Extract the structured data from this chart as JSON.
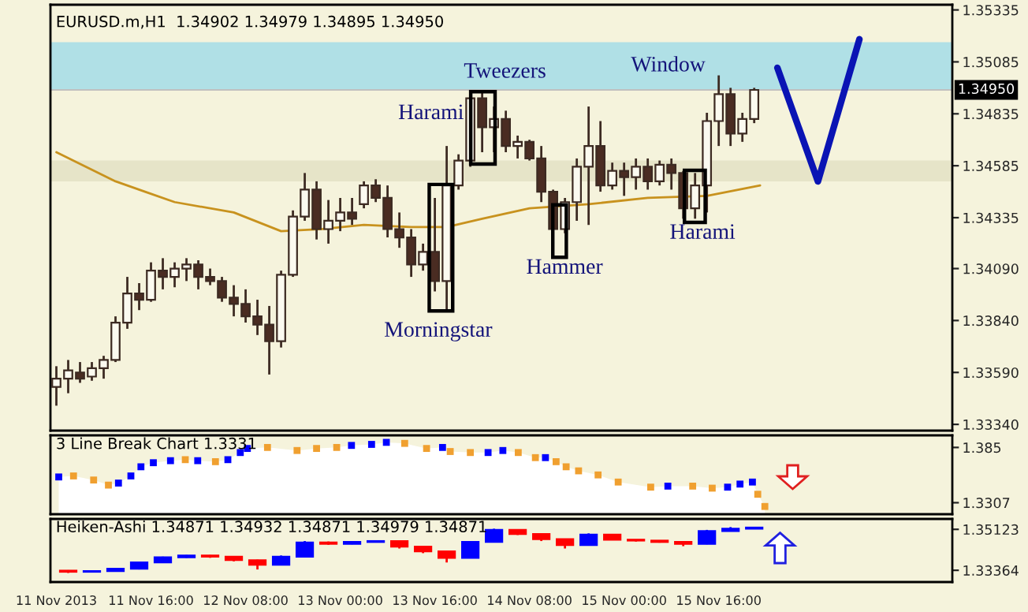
{
  "chart_data": [
    {
      "type": "candlestick",
      "title": "EURUSD.m,H1  1.34902 1.34979 1.34895 1.34950",
      "color": "#3c2a22",
      "x": [
        "2013-11-11T00:00",
        "2013-11-11T02:00",
        "2013-11-11T04:00",
        "2013-11-11T06:00",
        "2013-11-11T08:00",
        "2013-11-11T10:00",
        "2013-11-11T12:00",
        "2013-11-11T14:00",
        "2013-11-11T16:00",
        "2013-11-11T18:00",
        "2013-11-11T20:00",
        "2013-11-11T22:00",
        "2013-11-12T00:00",
        "2013-11-12T02:00",
        "2013-11-12T04:00",
        "2013-11-12T06:00",
        "2013-11-12T08:00",
        "2013-11-12T10:00",
        "2013-11-12T12:00",
        "2013-11-12T14:00",
        "2013-11-12T16:00",
        "2013-11-12T18:00",
        "2013-11-12T20:00",
        "2013-11-12T22:00",
        "2013-11-13T00:00",
        "2013-11-13T02:00",
        "2013-11-13T04:00",
        "2013-11-13T06:00",
        "2013-11-13T08:00",
        "2013-11-13T10:00",
        "2013-11-13T12:00",
        "2013-11-13T14:00",
        "2013-11-13T16:00",
        "2013-11-13T18:00",
        "2013-11-13T20:00",
        "2013-11-13T22:00",
        "2013-11-14T00:00",
        "2013-11-14T02:00",
        "2013-11-14T04:00",
        "2013-11-14T06:00",
        "2013-11-14T08:00",
        "2013-11-14T10:00",
        "2013-11-14T12:00",
        "2013-11-14T14:00",
        "2013-11-14T16:00",
        "2013-11-14T18:00",
        "2013-11-14T20:00",
        "2013-11-14T22:00",
        "2013-11-15T00:00",
        "2013-11-15T02:00",
        "2013-11-15T04:00",
        "2013-11-15T06:00",
        "2013-11-15T08:00",
        "2013-11-15T10:00",
        "2013-11-15T12:00",
        "2013-11-15T14:00",
        "2013-11-15T16:00",
        "2013-11-15T18:00",
        "2013-11-15T20:00",
        "2013-11-15T22:00"
      ],
      "ohlc": [
        [
          1.3352,
          1.3362,
          1.3343,
          1.3356
        ],
        [
          1.3356,
          1.3365,
          1.3349,
          1.336
        ],
        [
          1.3359,
          1.3364,
          1.3354,
          1.3356
        ],
        [
          1.3357,
          1.3364,
          1.3355,
          1.3361
        ],
        [
          1.3361,
          1.3367,
          1.3356,
          1.3365
        ],
        [
          1.3365,
          1.3386,
          1.3364,
          1.3383
        ],
        [
          1.3383,
          1.3405,
          1.338,
          1.3397
        ],
        [
          1.3397,
          1.3402,
          1.3389,
          1.3394
        ],
        [
          1.3394,
          1.3412,
          1.3393,
          1.3408
        ],
        [
          1.3408,
          1.3414,
          1.3399,
          1.3405
        ],
        [
          1.3405,
          1.3412,
          1.34,
          1.3409
        ],
        [
          1.3409,
          1.3414,
          1.3403,
          1.3411
        ],
        [
          1.3411,
          1.3413,
          1.3399,
          1.3405
        ],
        [
          1.3405,
          1.3409,
          1.3401,
          1.3403
        ],
        [
          1.3403,
          1.3405,
          1.3393,
          1.3395
        ],
        [
          1.3395,
          1.3401,
          1.3386,
          1.3392
        ],
        [
          1.3392,
          1.3399,
          1.3383,
          1.3386
        ],
        [
          1.3386,
          1.3394,
          1.3377,
          1.3382
        ],
        [
          1.3382,
          1.3391,
          1.3358,
          1.3374
        ],
        [
          1.3374,
          1.3408,
          1.3371,
          1.3406
        ],
        [
          1.3406,
          1.3437,
          1.3405,
          1.3434
        ],
        [
          1.3434,
          1.3455,
          1.3432,
          1.3447
        ],
        [
          1.3447,
          1.3451,
          1.3423,
          1.3428
        ],
        [
          1.3428,
          1.3442,
          1.3421,
          1.3432
        ],
        [
          1.3432,
          1.3443,
          1.3427,
          1.3436
        ],
        [
          1.3436,
          1.3443,
          1.343,
          1.3433
        ],
        [
          1.344,
          1.3451,
          1.3438,
          1.3449
        ],
        [
          1.3449,
          1.3452,
          1.3441,
          1.3443
        ],
        [
          1.3443,
          1.3449,
          1.3424,
          1.3428
        ],
        [
          1.3428,
          1.3436,
          1.3419,
          1.3424
        ],
        [
          1.3424,
          1.3428,
          1.3405,
          1.3411
        ],
        [
          1.3411,
          1.3421,
          1.3408,
          1.3417
        ],
        [
          1.3417,
          1.3443,
          1.3398,
          1.3403
        ],
        [
          1.3403,
          1.3468,
          1.3389,
          1.3449
        ],
        [
          1.3449,
          1.3464,
          1.3447,
          1.3461
        ],
        [
          1.3461,
          1.3494,
          1.3458,
          1.3491
        ],
        [
          1.3491,
          1.3494,
          1.3465,
          1.3477
        ],
        [
          1.3477,
          1.3487,
          1.3465,
          1.3481
        ],
        [
          1.3481,
          1.3485,
          1.3465,
          1.3468
        ],
        [
          1.3468,
          1.3473,
          1.3462,
          1.347
        ],
        [
          1.347,
          1.3471,
          1.3461,
          1.3462
        ],
        [
          1.3462,
          1.3468,
          1.3441,
          1.3446
        ],
        [
          1.3446,
          1.3447,
          1.3419,
          1.3428
        ],
        [
          1.3428,
          1.3443,
          1.3426,
          1.3441
        ],
        [
          1.3441,
          1.3462,
          1.3432,
          1.3458
        ],
        [
          1.3458,
          1.3487,
          1.343,
          1.3468
        ],
        [
          1.3468,
          1.348,
          1.3446,
          1.3449
        ],
        [
          1.3449,
          1.346,
          1.3447,
          1.3456
        ],
        [
          1.3456,
          1.346,
          1.3444,
          1.3453
        ],
        [
          1.3453,
          1.3462,
          1.3447,
          1.3458
        ],
        [
          1.3458,
          1.3462,
          1.3447,
          1.3451
        ],
        [
          1.3451,
          1.3461,
          1.3449,
          1.3459
        ],
        [
          1.3459,
          1.3462,
          1.3447,
          1.3455
        ],
        [
          1.3455,
          1.3456,
          1.3433,
          1.3438
        ],
        [
          1.3438,
          1.3455,
          1.3433,
          1.3449
        ],
        [
          1.3449,
          1.3484,
          1.3436,
          1.348
        ],
        [
          1.348,
          1.3502,
          1.3468,
          1.3493
        ],
        [
          1.3493,
          1.3496,
          1.3468,
          1.3474
        ],
        [
          1.3474,
          1.3484,
          1.347,
          1.3481
        ],
        [
          1.3481,
          1.3496,
          1.3479,
          1.3495
        ]
      ],
      "colors": [
        "#fbfaf0",
        "#fbfaf0",
        "#4a2c22",
        "#fbfaf0",
        "#fbfaf0",
        "#fbfaf0",
        "#fbfaf0",
        "#4a2c22",
        "#fbfaf0",
        "#4a2c22",
        "#fbfaf0",
        "#fbfaf0",
        "#4a2c22",
        "#4a2c22",
        "#4a2c22",
        "#4a2c22",
        "#4a2c22",
        "#4a2c22",
        "#4a2c22",
        "#fbfaf0",
        "#fbfaf0",
        "#fbfaf0",
        "#4a2c22",
        "#fbfaf0",
        "#fbfaf0",
        "#4a2c22",
        "#fbfaf0",
        "#4a2c22",
        "#4a2c22",
        "#4a2c22",
        "#4a2c22",
        "#fbfaf0",
        "#4a2c22",
        "#fbfaf0",
        "#fbfaf0",
        "#fbfaf0",
        "#4a2c22",
        "#fbfaf0",
        "#4a2c22",
        "#fbfaf0",
        "#4a2c22",
        "#4a2c22",
        "#4a2c22",
        "#fbfaf0",
        "#fbfaf0",
        "#fbfaf0",
        "#4a2c22",
        "#fbfaf0",
        "#4a2c22",
        "#fbfaf0",
        "#4a2c22",
        "#fbfaf0",
        "#4a2c22",
        "#4a2c22",
        "#fbfaf0",
        "#fbfaf0",
        "#fbfaf0",
        "#4a2c22",
        "#fbfaf0",
        "#fbfaf0"
      ],
      "series": [
        {
          "type": "line",
          "color": "#c8921e",
          "x": [
            "2013-11-11T00:00",
            "2013-11-11T05:00",
            "2013-11-11T10:00",
            "2013-11-11T15:00",
            "2013-11-11T20:00",
            "2013-11-12T06:00",
            "2013-11-12T14:00",
            "2013-11-12T21:00",
            "2013-11-13T04:00",
            "2013-11-13T12:00",
            "2013-11-13T18:00",
            "2013-11-14T00:00",
            "2013-11-14T08:00",
            "2013-11-14T18:00",
            "2013-11-15T04:00",
            "2013-11-15T14:00",
            "2013-11-15T23:00"
          ],
          "values": [
            1.3465,
            1.3458,
            1.3451,
            1.3446,
            1.3441,
            1.3436,
            1.3427,
            1.3428,
            1.343,
            1.3429,
            1.3429,
            1.3433,
            1.3438,
            1.344,
            1.3443,
            1.3444,
            1.3449
          ]
        }
      ],
      "xlim": [
        "2013-11-10T23:00",
        "2013-11-17T07:30"
      ],
      "ylim": [
        1.3331,
        1.3536
      ],
      "yticks": [
        {
          "value": 1.3334,
          "label": "1.33340"
        },
        {
          "value": 1.3359,
          "label": "1.33590"
        },
        {
          "value": 1.3384,
          "label": "1.33840"
        },
        {
          "value": 1.3409,
          "label": "1.34090"
        },
        1.34335,
        1.34585,
        1.34835,
        1.35085,
        1.35335
      ],
      "ref_lines": [
        {
          "axis": "y",
          "value": 1.3495,
          "label": "1.34950",
          "color": "#c0c0c0"
        }
      ],
      "bands": [
        {
          "axis": "y",
          "from": 1.3495,
          "to": 1.3518,
          "color": "#b0e0e6"
        },
        {
          "axis": "y",
          "from": 1.3451,
          "to": 1.3461,
          "color": "#e6e4c8"
        }
      ],
      "annotations": [
        "Tweezers",
        "Harami",
        "Window",
        "Morningstar",
        "Hammer",
        "Harami"
      ],
      "tick_labels": "y"
    },
    {
      "type": "scatter",
      "title": "3 Line Break Chart 1.3331",
      "x": [
        "2013-11-11T00:24",
        "2013-11-11T02:54",
        "2013-11-11T06:18",
        "2013-11-11T08:48",
        "2013-11-11T10:30",
        "2013-11-11T12:36",
        "2013-11-11T14:18",
        "2013-11-11T16:24",
        "2013-11-11T19:18",
        "2013-11-11T21:48",
        "2013-11-11T23:54",
        "2013-11-12T02:54",
        "2013-11-12T05:00",
        "2013-11-12T07:06",
        "2013-11-12T08:18",
        "2013-11-12T11:42",
        "2013-11-12T16:42",
        "2013-11-12T20:00",
        "2013-11-12T23:24",
        "2013-11-13T01:54",
        "2013-11-13T05:18",
        "2013-11-13T07:48",
        "2013-11-13T10:54",
        "2013-11-13T14:36",
        "2013-11-13T17:18",
        "2013-11-13T18:36",
        "2013-11-13T22:00",
        "2013-11-14T01:00",
        "2013-11-14T03:30",
        "2013-11-14T06:06",
        "2013-11-14T09:00",
        "2013-11-14T10:42",
        "2013-11-14T12:30",
        "2013-11-14T14:12",
        "2013-11-14T16:18",
        "2013-11-14T19:36",
        "2013-11-14T23:00",
        "2013-11-15T04:30",
        "2013-11-15T07:24",
        "2013-11-15T11:36",
        "2013-11-15T14:54",
        "2013-11-15T17:30",
        "2013-11-15T19:36",
        "2013-11-15T21:42",
        "2013-11-15T22:36",
        "2013-11-15T23:48"
      ],
      "series": [
        {
          "type": "area",
          "color": "#ffffff",
          "values": [
            1.356,
            1.357,
            1.353,
            1.348,
            1.35,
            1.357,
            1.366,
            1.37,
            1.372,
            1.373,
            1.372,
            1.371,
            1.373,
            1.38,
            1.384,
            1.385,
            1.382,
            1.384,
            1.385,
            1.387,
            1.388,
            1.39,
            1.389,
            1.384,
            1.385,
            1.381,
            1.38,
            1.38,
            1.382,
            1.38,
            1.375,
            1.375,
            1.371,
            1.366,
            1.362,
            1.358,
            1.351,
            1.346,
            1.347,
            1.347,
            1.345,
            1.346,
            1.349,
            1.351,
            1.339,
            1.327
          ]
        },
        {
          "color": "#0000ff",
          "marker": "square",
          "values": [
            1.356,
            null,
            null,
            null,
            1.35,
            1.357,
            1.366,
            1.37,
            1.372,
            null,
            1.372,
            null,
            1.373,
            1.38,
            1.384,
            null,
            null,
            null,
            null,
            1.387,
            1.388,
            1.39,
            null,
            null,
            1.385,
            null,
            null,
            1.38,
            1.382,
            null,
            null,
            1.375,
            null,
            null,
            null,
            null,
            null,
            null,
            1.347,
            null,
            null,
            1.346,
            1.349,
            1.351,
            null,
            null
          ]
        },
        {
          "color": "#f0a030",
          "marker": "square",
          "values": [
            null,
            1.357,
            1.353,
            1.348,
            null,
            null,
            null,
            null,
            null,
            1.373,
            null,
            1.371,
            null,
            null,
            null,
            1.385,
            1.382,
            1.384,
            1.385,
            null,
            null,
            null,
            1.389,
            1.384,
            null,
            1.381,
            1.38,
            null,
            null,
            1.38,
            1.375,
            null,
            1.371,
            1.366,
            1.362,
            1.358,
            1.351,
            1.346,
            null,
            1.347,
            1.345,
            null,
            null,
            null,
            1.339,
            1.327
          ]
        }
      ],
      "xlim": [
        "2013-11-10T23:00",
        "2013-11-17T07:30"
      ],
      "ylim": [
        1.3194,
        1.3969
      ],
      "yticks": [
        1.385,
        1.3307
      ],
      "tick_labels": "y"
    },
    {
      "type": "candlestick",
      "title": "Heiken-Ashi 1.34871 1.34932 1.34871 1.34979 1.34871",
      "x": [
        "2013-11-11T02:00",
        "2013-11-11T06:00",
        "2013-11-11T10:00",
        "2013-11-11T14:00",
        "2013-11-11T18:00",
        "2013-11-11T22:00",
        "2013-11-12T02:00",
        "2013-11-12T06:00",
        "2013-11-12T10:00",
        "2013-11-12T14:00",
        "2013-11-12T18:00",
        "2013-11-12T22:00",
        "2013-11-13T02:00",
        "2013-11-13T06:00",
        "2013-11-13T10:00",
        "2013-11-13T14:00",
        "2013-11-13T18:00",
        "2013-11-13T22:00",
        "2013-11-14T02:00",
        "2013-11-14T06:00",
        "2013-11-14T10:00",
        "2013-11-14T14:00",
        "2013-11-14T18:00",
        "2013-11-14T22:00",
        "2013-11-15T02:00",
        "2013-11-15T06:00",
        "2013-11-15T10:00",
        "2013-11-15T14:00",
        "2013-11-15T18:00",
        "2013-11-15T22:00"
      ],
      "ohlc": [
        [
          1.3335,
          1.3337,
          1.3325,
          1.333
        ],
        [
          1.333,
          1.3334,
          1.3328,
          1.3333
        ],
        [
          1.3333,
          1.3345,
          1.3331,
          1.3343
        ],
        [
          1.3343,
          1.3372,
          1.334,
          1.337
        ],
        [
          1.337,
          1.3395,
          1.3368,
          1.3392
        ],
        [
          1.3392,
          1.3402,
          1.339,
          1.34
        ],
        [
          1.34,
          1.3402,
          1.339,
          1.3395
        ],
        [
          1.3395,
          1.3396,
          1.3375,
          1.338
        ],
        [
          1.338,
          1.3382,
          1.334,
          1.336
        ],
        [
          1.336,
          1.34,
          1.3358,
          1.3395
        ],
        [
          1.3395,
          1.3462,
          1.3393,
          1.3456
        ],
        [
          1.3456,
          1.346,
          1.3446,
          1.345
        ],
        [
          1.345,
          1.3462,
          1.3448,
          1.3458
        ],
        [
          1.3458,
          1.3464,
          1.3456,
          1.3462
        ],
        [
          1.3462,
          1.3463,
          1.343,
          1.3438
        ],
        [
          1.3438,
          1.344,
          1.341,
          1.3418
        ],
        [
          1.3418,
          1.342,
          1.337,
          1.339
        ],
        [
          1.339,
          1.3462,
          1.3388,
          1.3458
        ],
        [
          1.3458,
          1.3515,
          1.3456,
          1.351
        ],
        [
          1.351,
          1.3512,
          1.3488,
          1.3492
        ],
        [
          1.3492,
          1.3494,
          1.3462,
          1.347
        ],
        [
          1.347,
          1.3472,
          1.343,
          1.3445
        ],
        [
          1.3445,
          1.3495,
          1.3443,
          1.349
        ],
        [
          1.349,
          1.3491,
          1.3466,
          1.3468
        ],
        [
          1.3468,
          1.3469,
          1.346,
          1.3464
        ],
        [
          1.3464,
          1.3465,
          1.3455,
          1.3458
        ],
        [
          1.3458,
          1.346,
          1.344,
          1.345
        ],
        [
          1.345,
          1.351,
          1.3448,
          1.3505
        ],
        [
          1.3505,
          1.3522,
          1.3503,
          1.3515
        ],
        [
          1.3515,
          1.3522,
          1.3514,
          1.352
        ]
      ],
      "colors": [
        "#ff0000",
        "#0000ff",
        "#0000ff",
        "#0000ff",
        "#0000ff",
        "#0000ff",
        "#ff0000",
        "#ff0000",
        "#ff0000",
        "#0000ff",
        "#0000ff",
        "#ff0000",
        "#0000ff",
        "#0000ff",
        "#ff0000",
        "#ff0000",
        "#ff0000",
        "#0000ff",
        "#0000ff",
        "#ff0000",
        "#ff0000",
        "#ff0000",
        "#0000ff",
        "#ff0000",
        "#ff0000",
        "#ff0000",
        "#ff0000",
        "#0000ff",
        "#0000ff",
        "#0000ff"
      ],
      "xlim": [
        "2013-11-10T23:00",
        "2013-11-17T07:30"
      ],
      "ylim": [
        1.3286,
        1.3557
      ],
      "yticks": [
        1.35123,
        1.33364
      ],
      "xticks": [
        {
          "value": "2013-11-11T00:00",
          "label": "11 Nov 2013"
        },
        {
          "value": "2013-11-11T16:00",
          "label": "11 Nov 16:00"
        },
        {
          "value": "2013-11-12T08:00",
          "label": "12 Nov 08:00"
        },
        {
          "value": "2013-11-13T00:00",
          "label": "13 Nov 00:00"
        },
        {
          "value": "2013-11-13T16:00",
          "label": "13 Nov 16:00"
        },
        {
          "value": "2013-11-14T08:00",
          "label": "14 Nov 08:00"
        },
        {
          "value": "2013-11-15T00:00",
          "label": "15 Nov 00:00"
        },
        {
          "value": "2013-11-15T16:00",
          "label": "15 Nov 16:00"
        }
      ]
    }
  ]
}
